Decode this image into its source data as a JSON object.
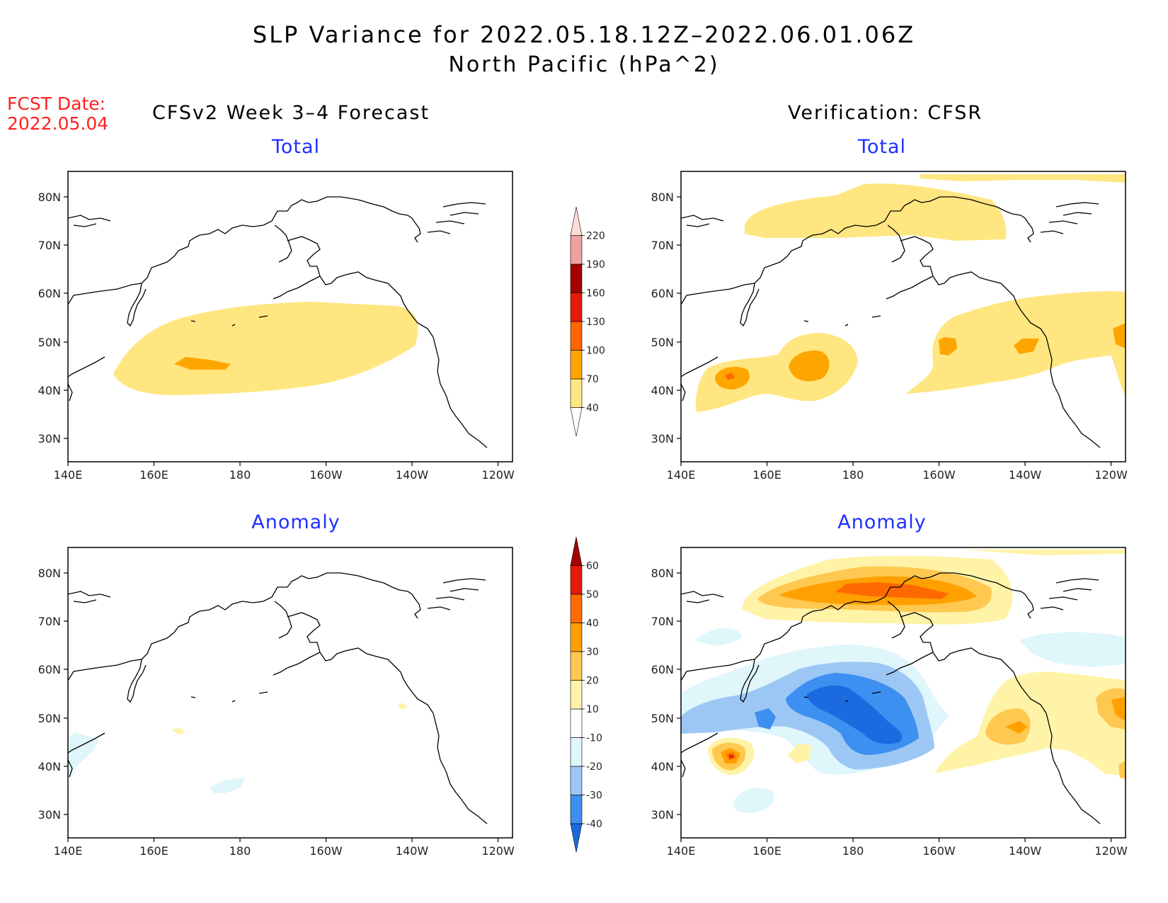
{
  "title": {
    "line1": "SLP Variance for 2022.05.18.12Z–2022.06.01.06Z",
    "line2": "North Pacific (hPa^2)"
  },
  "fcst": {
    "label": "FCST Date:",
    "date": "2022.05.04"
  },
  "columns": {
    "left": "CFSv2 Week 3–4 Forecast",
    "right": "Verification: CFSR"
  },
  "panels": {
    "total": "Total",
    "anomaly": "Anomaly"
  },
  "axes": {
    "lon_labels": [
      "140E",
      "160E",
      "180",
      "160W",
      "140W",
      "120W"
    ],
    "lat_labels": [
      "80N",
      "70N",
      "60N",
      "50N",
      "40N",
      "30N"
    ]
  },
  "colorbars": {
    "total": {
      "levels": [
        "40",
        "70",
        "100",
        "130",
        "160",
        "190",
        "220"
      ],
      "colors": [
        "#ffe680",
        "#ffa500",
        "#ff6600",
        "#e31a0a",
        "#a50000",
        "#f0a0a0",
        "#fddcd8"
      ]
    },
    "anomaly": {
      "levels": [
        "-40",
        "-30",
        "-20",
        "-10",
        "10",
        "20",
        "30",
        "40",
        "50",
        "60"
      ],
      "colors": [
        "#1c6ae0",
        "#3d8ff0",
        "#9cc7f5",
        "#dff6fb",
        "#ffffff",
        "#fff3a8",
        "#ffc850",
        "#ffa000",
        "#ff6a00",
        "#e31a0a",
        "#a50000"
      ]
    }
  }
}
